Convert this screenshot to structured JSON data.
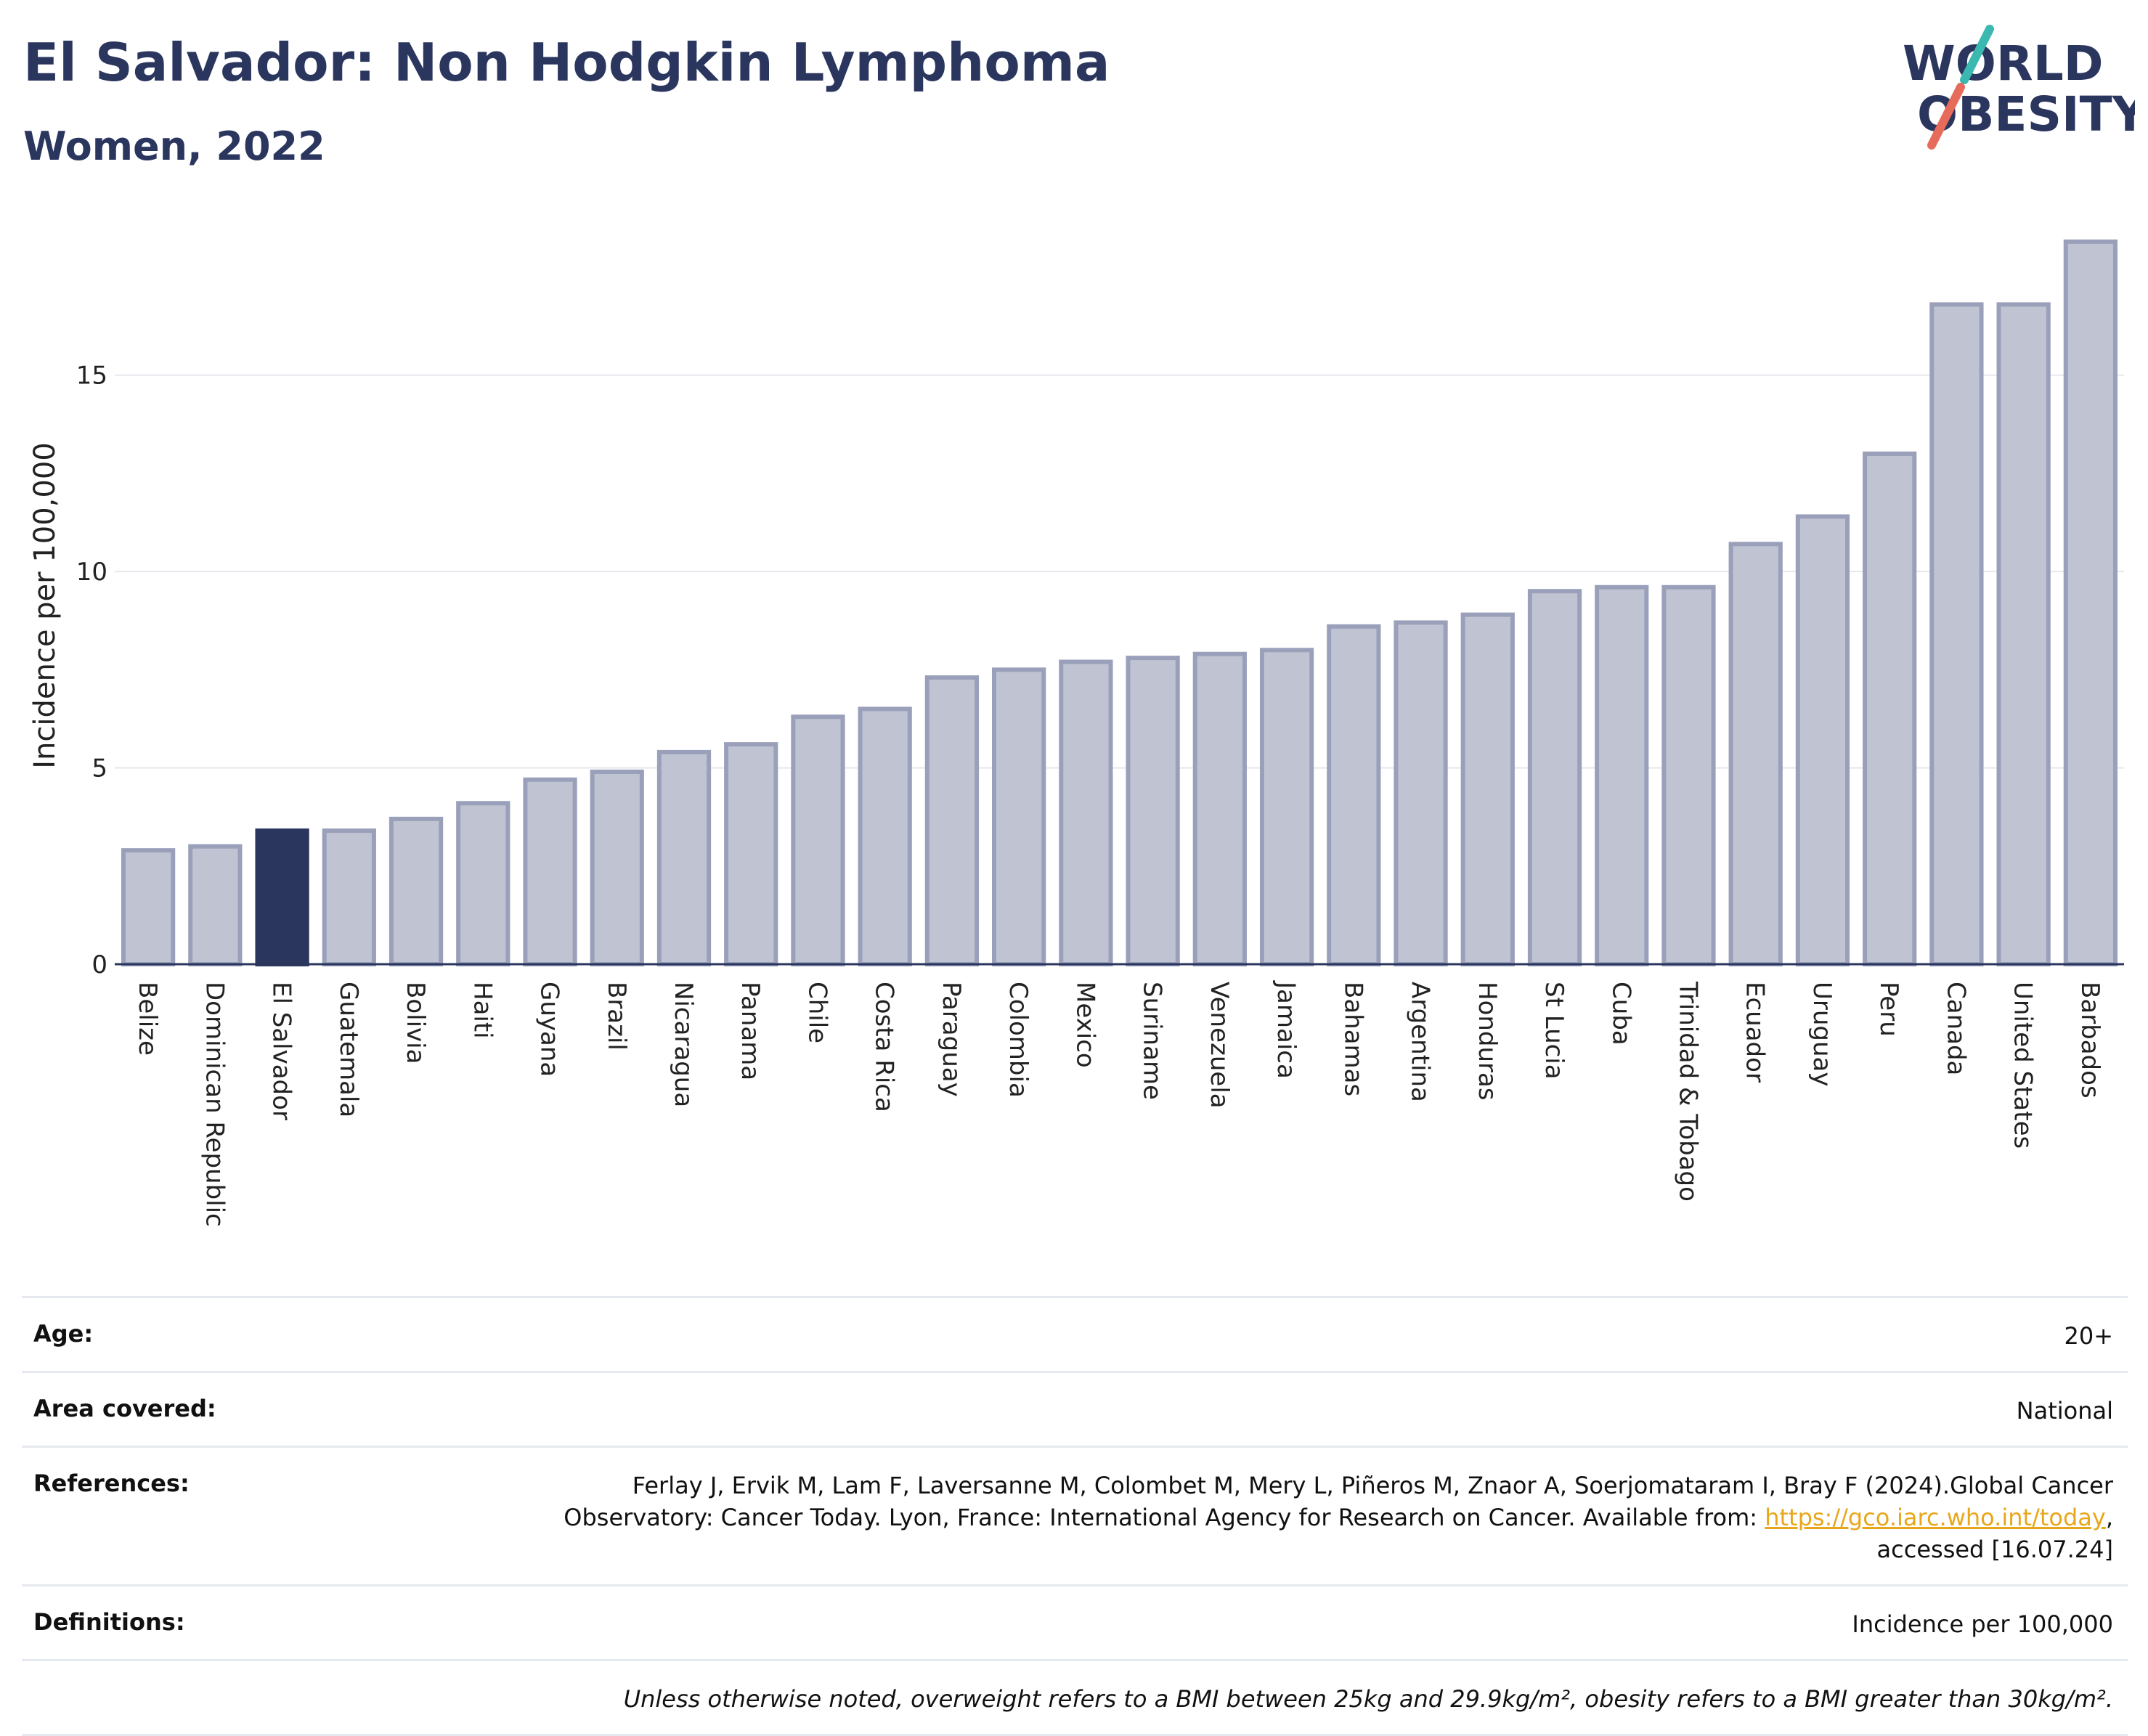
{
  "header": {
    "title": "El Salvador: Non Hodgkin Lymphoma",
    "subtitle": "Women, 2022",
    "logo_line1": "WORLD",
    "logo_line2": "OBESITY"
  },
  "colors": {
    "highlight": "#2b365f",
    "bar_fill": "#c0c4d2",
    "bar_stroke": "#9aa0ba",
    "text": "#2b365f",
    "logo_teal": "#3bb8b0",
    "logo_coral": "#e66b5b"
  },
  "chart_data": {
    "type": "bar",
    "title": "El Salvador: Non Hodgkin Lymphoma",
    "subtitle": "Women, 2022",
    "xlabel": "",
    "ylabel": "Incidence per 100,000",
    "ylim": [
      0,
      18.6
    ],
    "yticks": [
      0,
      5,
      10,
      15
    ],
    "grid": true,
    "highlight": "El Salvador",
    "categories": [
      "Belize",
      "Dominican Republic",
      "El Salvador",
      "Guatemala",
      "Bolivia",
      "Haiti",
      "Guyana",
      "Brazil",
      "Nicaragua",
      "Panama",
      "Chile",
      "Costa Rica",
      "Paraguay",
      "Colombia",
      "Mexico",
      "Suriname",
      "Venezuela",
      "Jamaica",
      "Bahamas",
      "Argentina",
      "Honduras",
      "St Lucia",
      "Cuba",
      "Trinidad & Tobago",
      "Ecuador",
      "Uruguay",
      "Peru",
      "Canada",
      "United States",
      "Barbados"
    ],
    "values": [
      2.9,
      3.0,
      3.4,
      3.4,
      3.7,
      4.1,
      4.7,
      4.9,
      5.4,
      5.6,
      6.3,
      6.5,
      7.3,
      7.5,
      7.7,
      7.8,
      7.9,
      8.0,
      8.6,
      8.7,
      8.9,
      9.5,
      9.6,
      9.6,
      10.7,
      11.4,
      13.0,
      16.8,
      16.8,
      18.4
    ]
  },
  "info": {
    "age_label": "Age:",
    "age_value": "20+",
    "area_label": "Area covered:",
    "area_value": "National",
    "references_label": "References:",
    "references_line1": "Ferlay J, Ervik M, Lam F, Laversanne M, Colombet M, Mery L, Piñeros M, Znaor A, Soerjomataram I, Bray F (2024).Global Cancer",
    "references_line2_pre": "Observatory: Cancer Today. Lyon, France: International Agency for Research on Cancer. Available from: ",
    "references_link": "https://gco.iarc.who.int/today",
    "references_line2_post": ",",
    "references_line3": "accessed [16.07.24]",
    "definitions_label": "Definitions:",
    "definitions_value": "Incidence per 100,000",
    "note": "Unless otherwise noted, overweight refers to a BMI between 25kg and 29.9kg/m², obesity refers to a BMI greater than 30kg/m²."
  }
}
